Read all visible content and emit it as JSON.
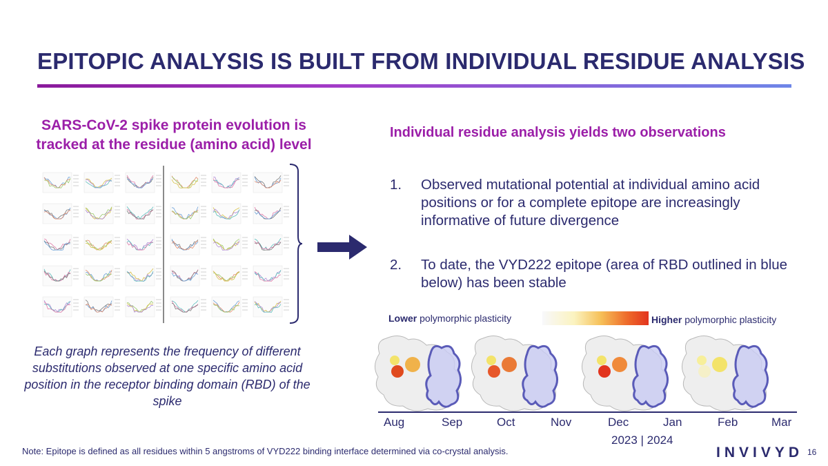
{
  "title": "EPITOPIC ANALYSIS IS BUILT FROM INDIVIDUAL RESIDUE ANALYSIS",
  "left": {
    "heading_line1": "SARS-CoV-2 spike protein evolution is",
    "heading_line2": "tracked at the residue (amino acid) level",
    "caption": "Each graph represents the frequency of different substitutions observed at one specific amino acid position in the receptor binding domain (RBD) of the spike"
  },
  "right": {
    "heading": "Individual residue analysis yields two observations",
    "observations": [
      {
        "num": "1.",
        "text": "Observed mutational potential at individual amino acid positions or for a complete epitope are increasingly informative of future divergence"
      },
      {
        "num": "2.",
        "text": "To date, the VYD222 epitope (area of RBD outlined in blue below) has been stable"
      }
    ]
  },
  "legend": {
    "low_bold": "Lower",
    "low_rest": " polymorphic plasticity",
    "high_bold": "Higher",
    "high_rest": " polymorphic  plasticity"
  },
  "timeline": {
    "months": [
      "Aug",
      "Sep",
      "Oct",
      "Nov",
      "Dec",
      "Jan",
      "Feb",
      "Mar"
    ],
    "years": "2023 | 2024"
  },
  "note": "Note: Epitope is defined as all residues within 5 angstroms of VYD222 binding interface determined via co-crystal analysis.",
  "logo": "INVIVYD",
  "page_number": "16",
  "colors": {
    "navy": "#2b2a6e",
    "magenta": "#9b1ea8",
    "epitope_outline": "#5a5bb8",
    "high_plasticity": "#e2341e",
    "low_plasticity": "#f8f8fb"
  }
}
